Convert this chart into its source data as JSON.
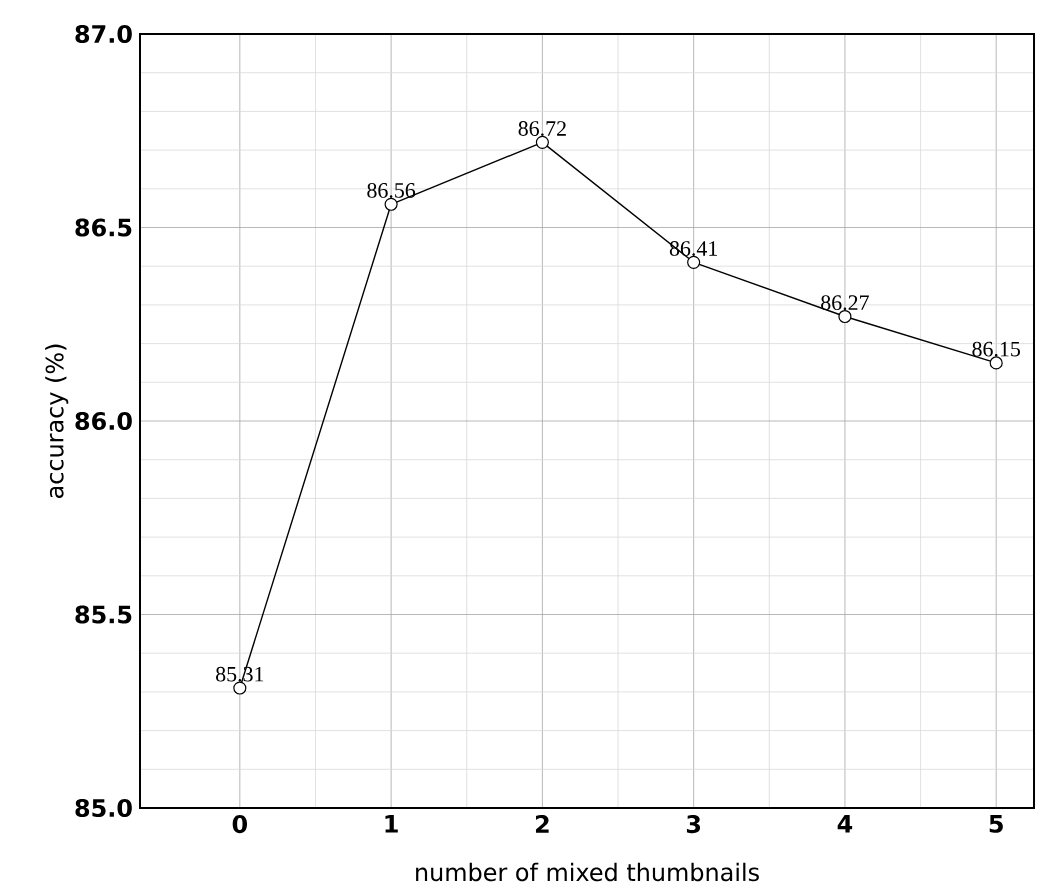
{
  "chart_data": {
    "type": "line",
    "xlabel": "number of mixed thumbnails",
    "ylabel": "accuracy (%)",
    "x": [
      0,
      1,
      2,
      3,
      4,
      5
    ],
    "series": [
      {
        "color": "#000000",
        "values": [
          85.31,
          86.56,
          86.72,
          86.41,
          86.27,
          86.15
        ]
      }
    ],
    "xlim": [
      -0.66,
      5.25
    ],
    "ylim": [
      85.0,
      87.0
    ],
    "xticks": [
      0,
      1,
      2,
      3,
      4,
      5
    ],
    "yticks": [
      {
        "value": 85.0,
        "label": "85.0"
      },
      {
        "value": 85.5,
        "label": "85.5"
      },
      {
        "value": 86.0,
        "label": "86.0"
      },
      {
        "value": 86.5,
        "label": "86.5"
      },
      {
        "value": 87.0,
        "label": "87.0"
      }
    ],
    "grid": true,
    "marker": "circle",
    "line_style": "solid",
    "data_labels": true
  }
}
